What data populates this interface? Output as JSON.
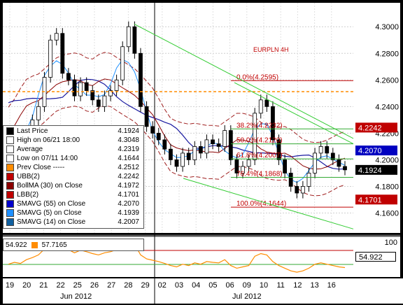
{
  "chart_data": {
    "type": "line",
    "title": "EURPLN 4H",
    "x_labels": [
      "19",
      "20",
      "21",
      "22",
      "25",
      "26",
      "27",
      "28",
      "29",
      "02",
      "03",
      "04",
      "05",
      "06",
      "09",
      "10",
      "11",
      "12",
      "13",
      "16"
    ],
    "months": [
      "Jun 2012",
      "Jul 2012"
    ],
    "y_ticks": [
      "4.3000",
      "4.2800",
      "4.2600",
      "4.2400",
      "4.2200",
      "4.2000",
      "4.1800",
      "4.1600"
    ],
    "ylim": [
      4.145,
      4.318
    ],
    "close_series": [
      4.205,
      4.212,
      4.208,
      4.222,
      4.23,
      4.24,
      4.262,
      4.29,
      4.295,
      4.265,
      4.26,
      4.248,
      4.258,
      4.252,
      4.245,
      4.24,
      4.248,
      4.252,
      4.26,
      4.285,
      4.3,
      4.28,
      4.24,
      4.225,
      4.22,
      4.215,
      4.208,
      4.2,
      4.195,
      4.205,
      4.2,
      4.21,
      4.205,
      4.215,
      4.212,
      4.21,
      4.222,
      4.2,
      4.19,
      4.195,
      4.2,
      4.235,
      4.245,
      4.24,
      4.215,
      4.2,
      4.19,
      4.18,
      4.175,
      4.18,
      4.19,
      4.205,
      4.21,
      4.205,
      4.2,
      4.195,
      4.1924
    ],
    "fibonacci": [
      {
        "label": "0.0%(4.2595)",
        "value": 4.2595
      },
      {
        "label": "38.2%(4.2232)",
        "value": 4.2232
      },
      {
        "label": "50.0%(4.2120)",
        "value": 4.212
      },
      {
        "label": "61.8%(4.2007)",
        "value": 4.2007
      },
      {
        "label": "76.4%(4.1868)",
        "value": 4.1868
      },
      {
        "label": "100.0%(4.1644)",
        "value": 4.1644
      }
    ],
    "price_tags": [
      {
        "value": "4.2242",
        "color": "#c00000"
      },
      {
        "value": "4.2070",
        "color": "#0000c0"
      },
      {
        "value": "4.1924",
        "color": "#000000"
      },
      {
        "value": "4.1701",
        "color": "#c00000"
      }
    ],
    "prev_close": 4.2512
  },
  "legend": [
    {
      "label": "Last Price",
      "value": "4.1924",
      "color": "#000000"
    },
    {
      "label": "High on 06/21 18:00",
      "value": "4.3048",
      "color": "#ffffff"
    },
    {
      "label": "Average",
      "value": "4.2319",
      "color": "#ffffff"
    },
    {
      "label": "Low on 07/11 14:00",
      "value": "4.1644",
      "color": "#ffffff"
    },
    {
      "label": "Prev Close -----",
      "value": "4.2512",
      "color": "#ff8c00"
    },
    {
      "label": "UBB(2)",
      "value": "4.2242",
      "color": "#c00000"
    },
    {
      "label": "BollMA (30) on Close",
      "value": "4.1972",
      "color": "#8b0000"
    },
    {
      "label": "LBB(2)",
      "value": "4.1701",
      "color": "#c00000"
    },
    {
      "label": "SMAVG (55) on Close",
      "value": "4.2070",
      "color": "#0000cc"
    },
    {
      "label": "SMAVG (5) on Close",
      "value": "4.1939",
      "color": "#1e90ff"
    },
    {
      "label": "SMAVG (14) on Close",
      "value": "4.2007",
      "color": "#1060a0"
    }
  ],
  "indicator": {
    "value1": "54.922",
    "value2": "57.7165",
    "axis_top": "100",
    "current": "54.922"
  }
}
